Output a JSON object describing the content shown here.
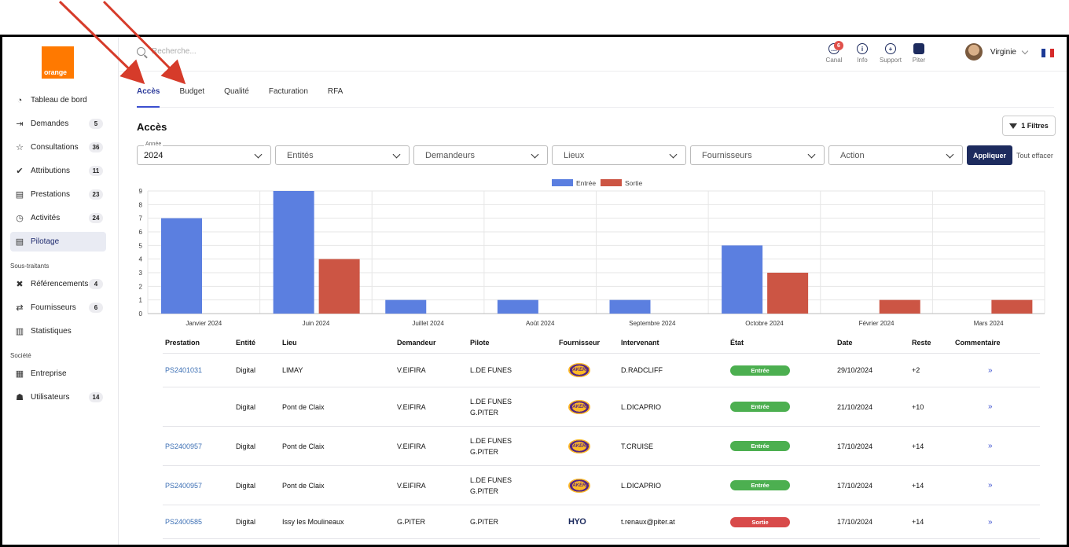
{
  "brand": {
    "logo_text": "orange",
    "logo_color": "#ff7900",
    "accent": "#1d2b5e"
  },
  "sidebar": {
    "items": [
      {
        "label": "Tableau de bord",
        "icon": "dashboard-icon",
        "badge": ""
      },
      {
        "label": "Demandes",
        "icon": "login-icon",
        "badge": "5"
      },
      {
        "label": "Consultations",
        "icon": "star-icon",
        "badge": "36"
      },
      {
        "label": "Attributions",
        "icon": "check-double-icon",
        "badge": "11"
      },
      {
        "label": "Prestations",
        "icon": "document-gear-icon",
        "badge": "23"
      },
      {
        "label": "Activités",
        "icon": "clock-icon",
        "badge": "24"
      },
      {
        "label": "Pilotage",
        "icon": "document-icon",
        "badge": ""
      }
    ],
    "subcontractors_title": "Sous-traitants",
    "subcontractors": [
      {
        "label": "Référencements",
        "icon": "network-icon",
        "badge": "4"
      },
      {
        "label": "Fournisseurs",
        "icon": "handshake-icon",
        "badge": "6"
      },
      {
        "label": "Statistiques",
        "icon": "chart-icon",
        "badge": ""
      }
    ],
    "company_title": "Société",
    "company": [
      {
        "label": "Entreprise",
        "icon": "building-icon",
        "badge": ""
      },
      {
        "label": "Utilisateurs",
        "icon": "users-icon",
        "badge": "14"
      }
    ]
  },
  "topbar": {
    "search_placeholder": "Recherche...",
    "icons": [
      {
        "label": "Canal",
        "icon": "chat-icon",
        "notif": "6"
      },
      {
        "label": "Info",
        "icon": "info-icon",
        "notif": ""
      },
      {
        "label": "Support",
        "icon": "lifebuoy-icon",
        "notif": ""
      },
      {
        "label": "Piter",
        "icon": "piter-icon",
        "notif": ""
      }
    ],
    "user_name": "Virginie"
  },
  "tabs": [
    "Accès",
    "Budget",
    "Qualité",
    "Facturation",
    "RFA"
  ],
  "page_title": "Accès",
  "filters_button": "1 Filtres",
  "filters": {
    "year_label": "Année",
    "year_value": "2024",
    "entites": "Entités",
    "demandeurs": "Demandeurs",
    "lieux": "Lieux",
    "fournisseurs": "Fournisseurs",
    "action": "Action",
    "apply": "Appliquer",
    "clear": "Tout effacer"
  },
  "chart_data": {
    "type": "bar",
    "categories": [
      "Janvier 2024",
      "Juin 2024",
      "Juillet 2024",
      "Août 2024",
      "Septembre 2024",
      "Octobre 2024",
      "Février 2024",
      "Mars 2024"
    ],
    "series": [
      {
        "name": "Entrée",
        "color": "#5b7fe0",
        "values": [
          7,
          9,
          1,
          1,
          1,
          5,
          0,
          0
        ]
      },
      {
        "name": "Sortie",
        "color": "#cc5544",
        "values": [
          0,
          4,
          0,
          0,
          0,
          3,
          1,
          1
        ]
      }
    ],
    "yticks": [
      "0",
      "1",
      "2",
      "3",
      "4",
      "5",
      "6",
      "7",
      "8",
      "9"
    ],
    "ylim": [
      0,
      9
    ],
    "legend": "top-center",
    "grid": true
  },
  "table": {
    "headers": [
      "Prestation",
      "Entité",
      "Lieu",
      "Demandeur",
      "Pilote",
      "Fournisseur",
      "Intervenant",
      "État",
      "Date",
      "Reste",
      "Commentaire"
    ],
    "rows": [
      {
        "prestation": "PS2401031",
        "entite": "Digital",
        "lieu": "LIMAY",
        "demandeur": "V.EIFIRA",
        "pilote": [
          "L.DE FUNES"
        ],
        "fournisseur": "lakers-logo",
        "intervenant": "D.RADCLIFF",
        "etat": "Entrée",
        "etat_color": "#4caf50",
        "date": "29/10/2024",
        "reste": "+2"
      },
      {
        "prestation": "",
        "entite": "Digital",
        "lieu": "Pont de Claix",
        "demandeur": "V.EIFIRA",
        "pilote": [
          "L.DE FUNES",
          "G.PITER"
        ],
        "fournisseur": "lakers-logo",
        "intervenant": "L.DICAPRIO",
        "etat": "Entrée",
        "etat_color": "#4caf50",
        "date": "21/10/2024",
        "reste": "+10"
      },
      {
        "prestation": "PS2400957",
        "entite": "Digital",
        "lieu": "Pont de Claix",
        "demandeur": "V.EIFIRA",
        "pilote": [
          "L.DE FUNES",
          "G.PITER"
        ],
        "fournisseur": "lakers-logo",
        "intervenant": "T.CRUISE",
        "etat": "Entrée",
        "etat_color": "#4caf50",
        "date": "17/10/2024",
        "reste": "+14"
      },
      {
        "prestation": "PS2400957",
        "entite": "Digital",
        "lieu": "Pont de Claix",
        "demandeur": "V.EIFIRA",
        "pilote": [
          "L.DE FUNES",
          "G.PITER"
        ],
        "fournisseur": "lakers-logo",
        "intervenant": "L.DICAPRIO",
        "etat": "Entrée",
        "etat_color": "#4caf50",
        "date": "17/10/2024",
        "reste": "+14"
      },
      {
        "prestation": "PS2400585",
        "entite": "Digital",
        "lieu": "Issy les Moulineaux",
        "demandeur": "G.PITER",
        "pilote": [
          "G.PITER"
        ],
        "fournisseur": "hyo-logo",
        "intervenant": "t.renaux@piter.at",
        "etat": "Sortie",
        "etat_color": "#d84a4a",
        "date": "17/10/2024",
        "reste": "+14"
      }
    ],
    "hyo_text": "HYO",
    "lakers_text": "LAKERS"
  }
}
